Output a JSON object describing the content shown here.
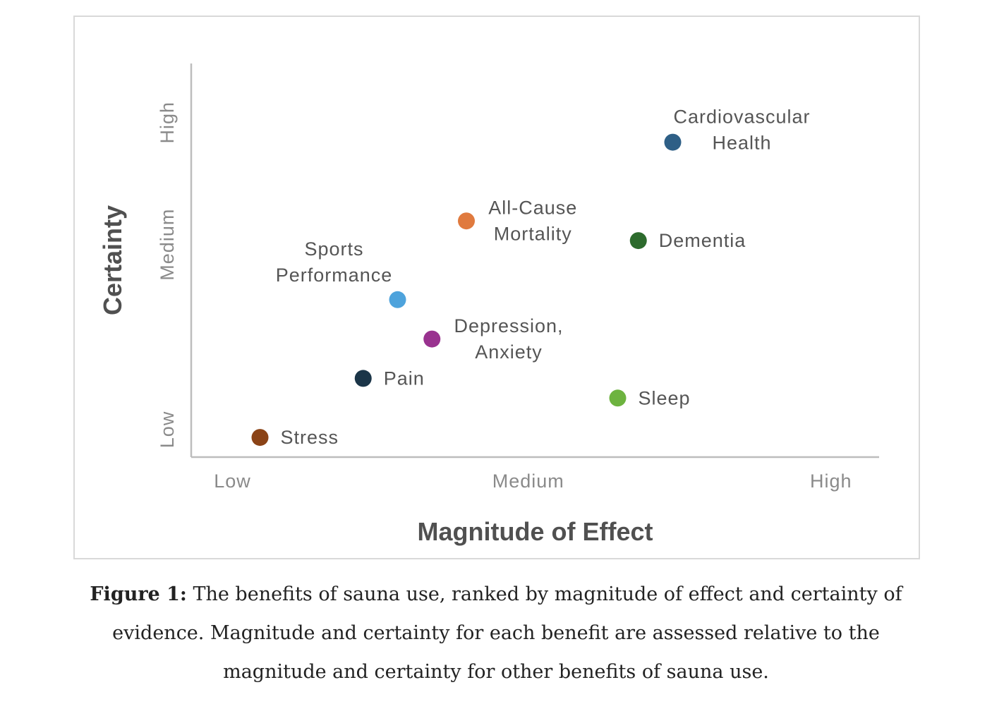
{
  "chart_data": {
    "type": "scatter",
    "title": "",
    "xlabel": "Magnitude of Effect",
    "ylabel": "Certainty",
    "xlim": [
      0,
      100
    ],
    "ylim": [
      0,
      100
    ],
    "grid": false,
    "x_ticks": [
      {
        "value": 6,
        "label": "Low"
      },
      {
        "value": 49,
        "label": "Medium"
      },
      {
        "value": 93,
        "label": "High"
      }
    ],
    "y_ticks": [
      {
        "value": 7,
        "label": "Low"
      },
      {
        "value": 54,
        "label": "Medium"
      },
      {
        "value": 85,
        "label": "High"
      }
    ],
    "points": [
      {
        "name": "Cardiovascular Health",
        "label_lines": [
          "Cardiovascular",
          "Health"
        ],
        "x": 70,
        "y": 80,
        "color": "#2e5f86",
        "label_pos": "upper-right"
      },
      {
        "name": "All-Cause Mortality",
        "label_lines": [
          "All-Cause",
          "Mortality"
        ],
        "x": 40,
        "y": 60,
        "color": "#e07a3e",
        "label_pos": "right"
      },
      {
        "name": "Dementia",
        "label_lines": [
          "Dementia"
        ],
        "x": 65,
        "y": 55,
        "color": "#2d6b2d",
        "label_pos": "right"
      },
      {
        "name": "Sports Performance",
        "label_lines": [
          "Sports",
          "Performance"
        ],
        "x": 30,
        "y": 40,
        "color": "#4ea3dc",
        "label_pos": "upper-left"
      },
      {
        "name": "Depression, Anxiety",
        "label_lines": [
          "Depression,",
          "Anxiety"
        ],
        "x": 35,
        "y": 30,
        "color": "#99328f",
        "label_pos": "right"
      },
      {
        "name": "Pain",
        "label_lines": [
          "Pain"
        ],
        "x": 25,
        "y": 20,
        "color": "#1b3548",
        "label_pos": "right"
      },
      {
        "name": "Sleep",
        "label_lines": [
          "Sleep"
        ],
        "x": 62,
        "y": 15,
        "color": "#6db33f",
        "label_pos": "right"
      },
      {
        "name": "Stress",
        "label_lines": [
          "Stress"
        ],
        "x": 10,
        "y": 5,
        "color": "#8b4316",
        "label_pos": "right"
      }
    ]
  },
  "caption": {
    "lead": "Figure 1:",
    "text": " The benefits of sauna use, ranked by magnitude of effect and certainty of evidence. Magnitude and certainty for each benefit are assessed relative to the magnitude and certainty for other benefits of sauna use."
  }
}
